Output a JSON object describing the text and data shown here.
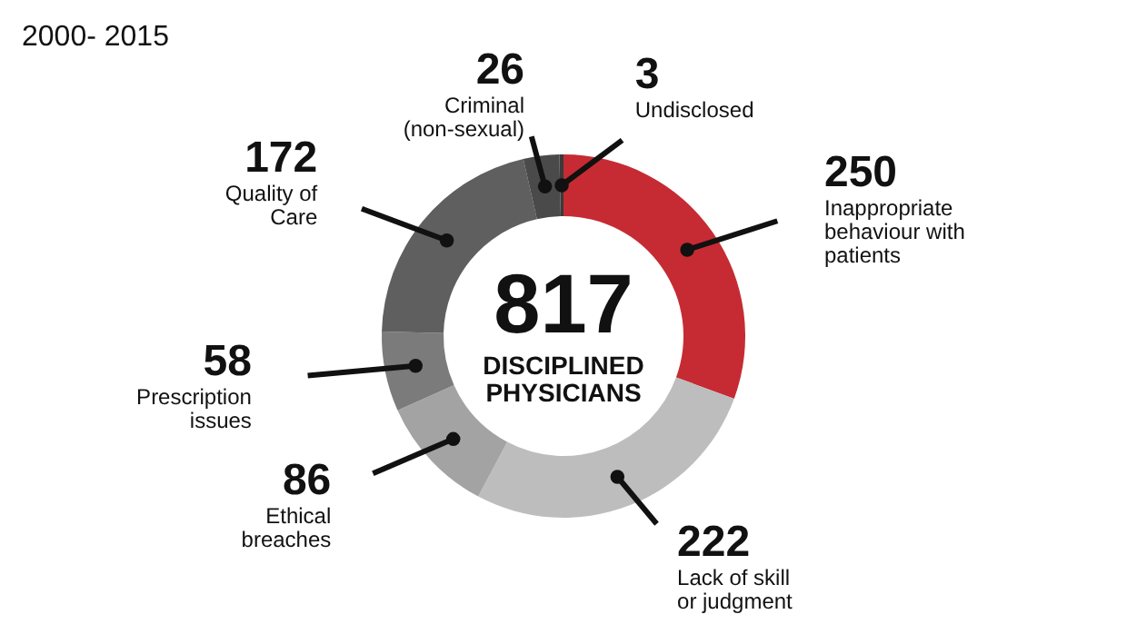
{
  "chart_data": {
    "type": "donut",
    "title": "2000- 2015",
    "categories": [
      "Inappropriate behaviour with patients",
      "Lack of skill or judgment",
      "Ethical breaches",
      "Prescription issues",
      "Quality of Care",
      "Criminal (non-sexual)",
      "Undisclosed"
    ],
    "values": [
      250,
      222,
      86,
      58,
      172,
      26,
      3
    ],
    "colors": [
      "#c62b33",
      "#bdbdbd",
      "#a3a3a3",
      "#7b7b7b",
      "#5f5f5f",
      "#4a4a4a",
      "#3a3a3a"
    ],
    "data_labels": true,
    "annotations": [
      "817",
      "DISCIPLINED PHYSICIANS"
    ]
  }
}
